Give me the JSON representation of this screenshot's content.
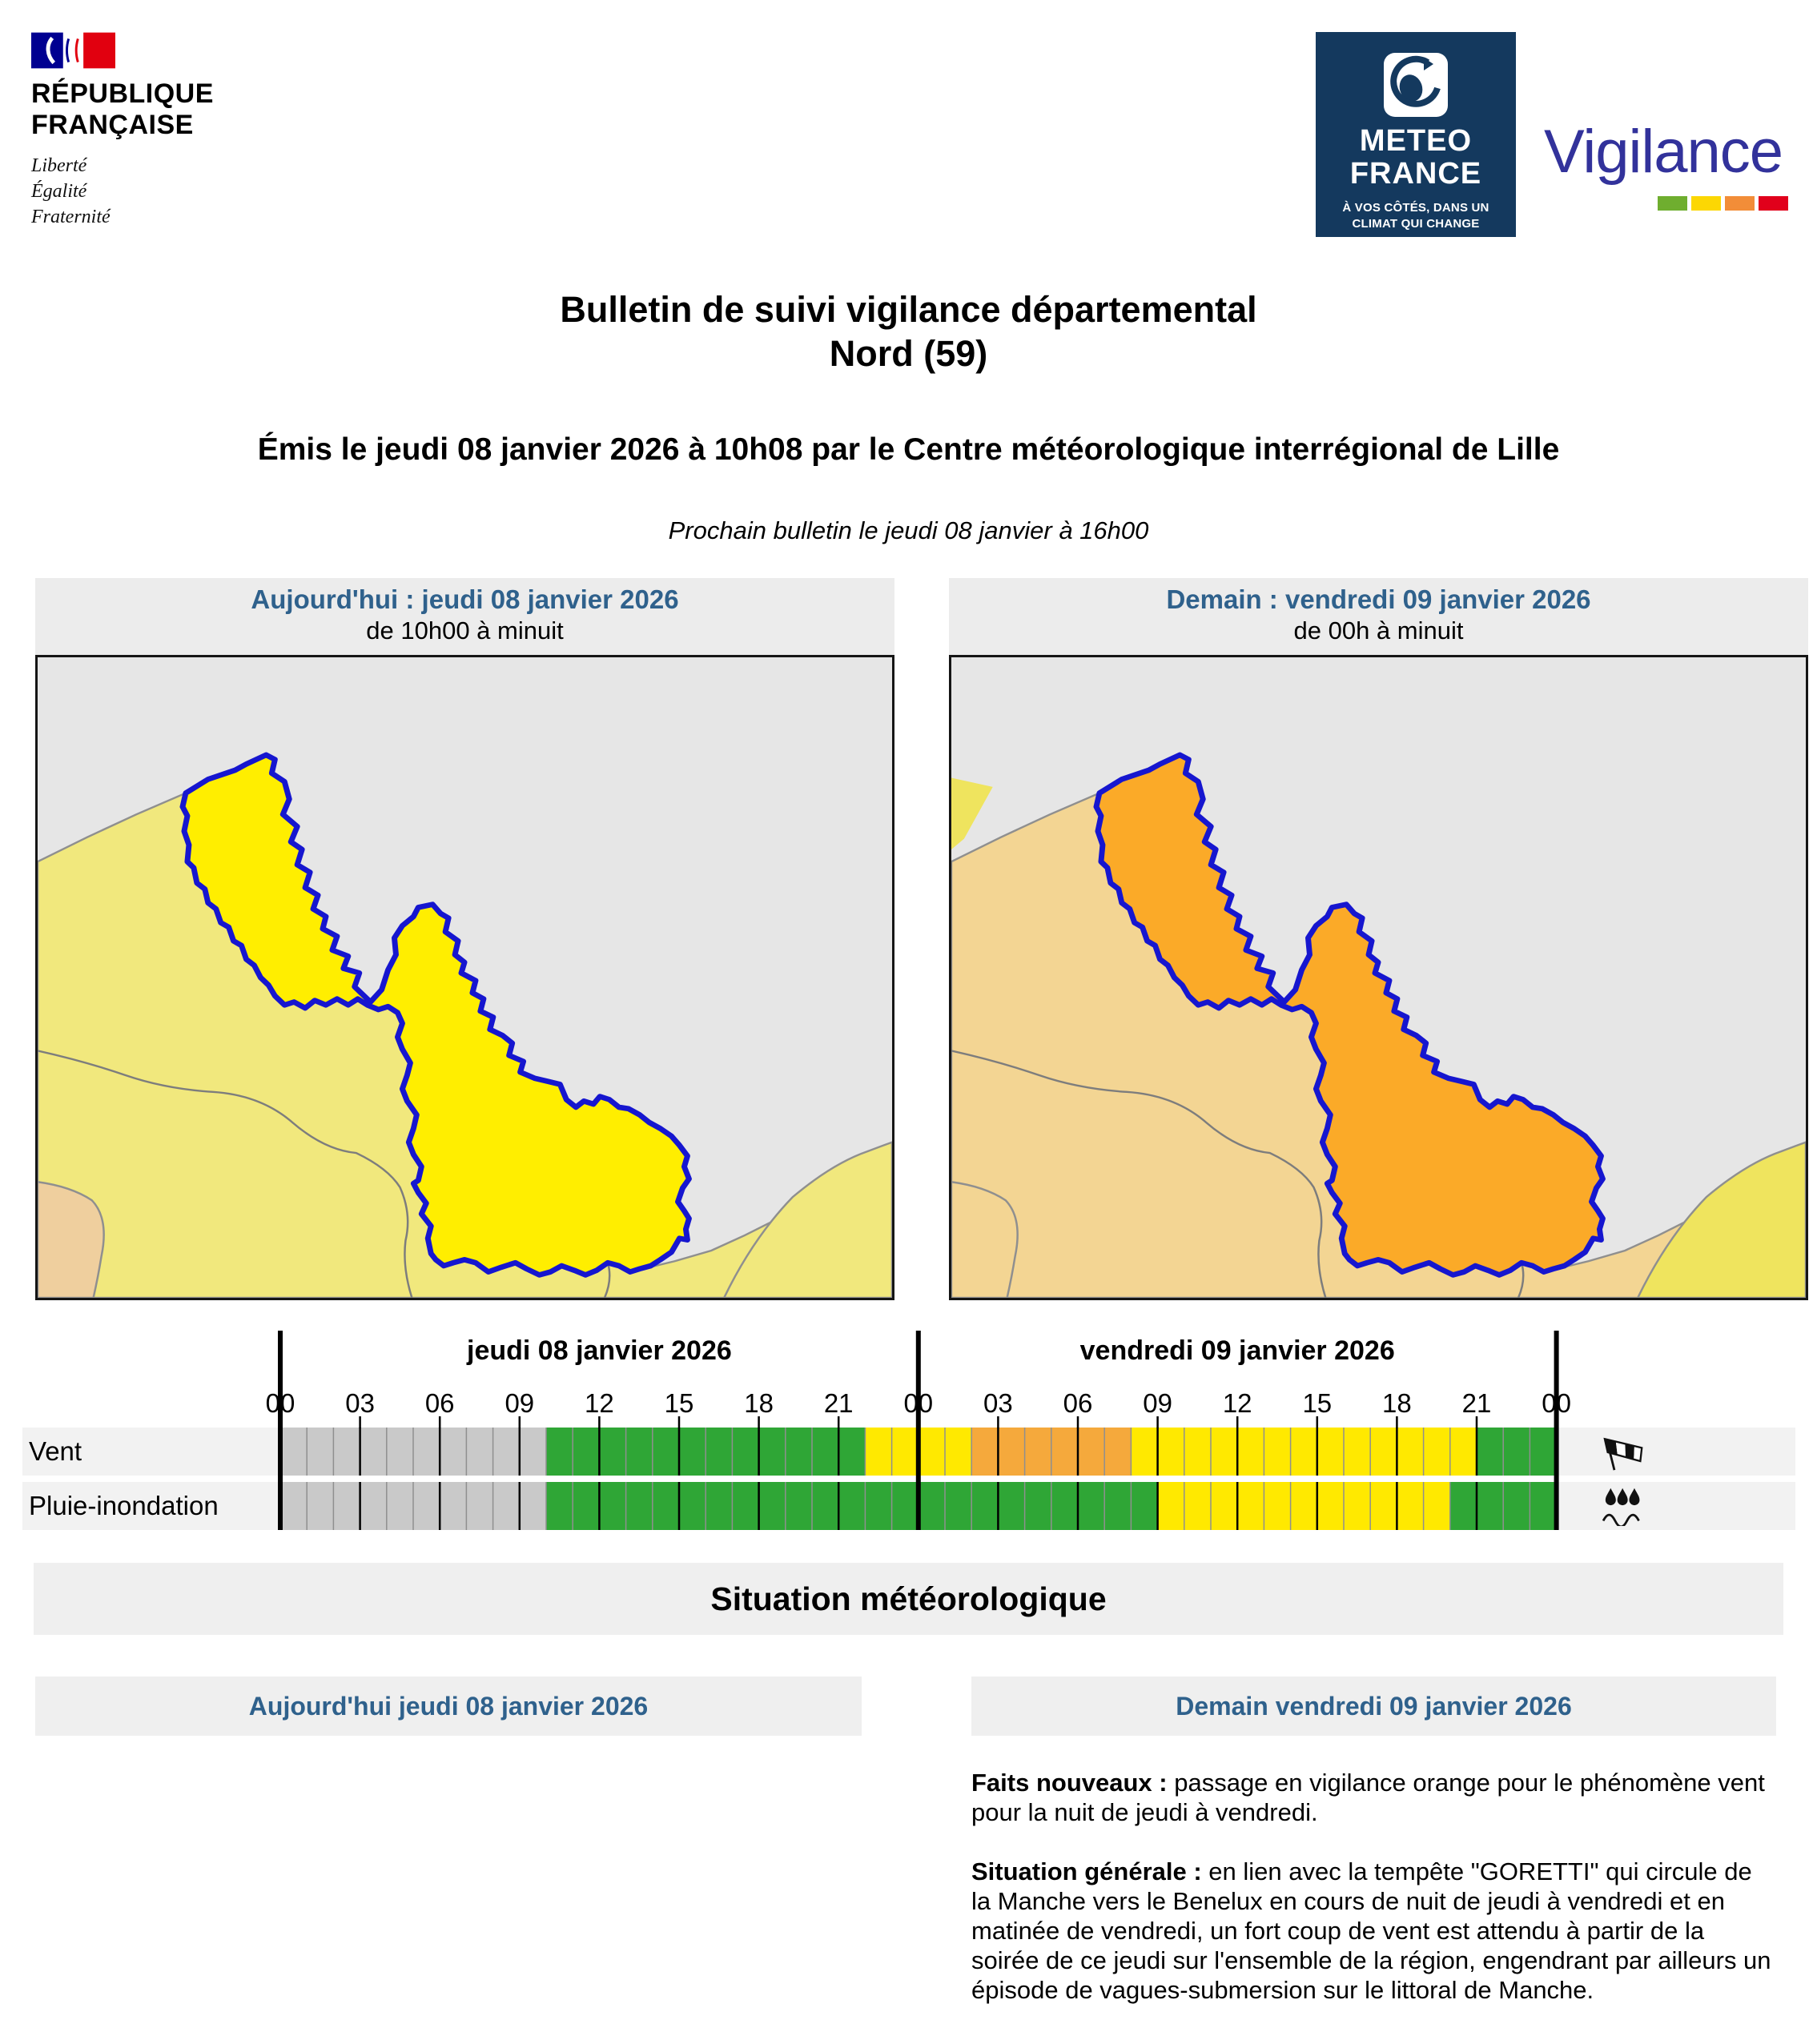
{
  "header": {
    "republic": {
      "line1": "RÉPUBLIQUE",
      "line2": "FRANÇAISE",
      "motto": [
        "Liberté",
        "Égalité",
        "Fraternité"
      ]
    },
    "meteo_france": {
      "name_line1": "METEO",
      "name_line2": "FRANCE",
      "tagline_line1": "À VOS CÔTÉS, DANS UN",
      "tagline_line2": "CLIMAT QUI CHANGE"
    },
    "vigilance_logo": {
      "text": "Vigilance",
      "bar_colors": [
        "#6fae2f",
        "#fcd703",
        "#f28d38",
        "#e1001b"
      ]
    }
  },
  "title": {
    "line1": "Bulletin de suivi vigilance départemental",
    "line2": "Nord (59)"
  },
  "issued": "Émis le jeudi 08 janvier 2026 à 10h08 par le Centre météorologique interrégional de Lille",
  "next_bulletin": "Prochain bulletin le jeudi 08 janvier à 16h00",
  "maps": {
    "today": {
      "title": "Aujourd'hui : jeudi 08 janvier 2026",
      "subtitle": "de 10h00 à minuit",
      "nord_level": "jaune"
    },
    "tomorrow": {
      "title": "Demain : vendredi 09 janvier 2026",
      "subtitle": "de 00h à minuit",
      "nord_level": "orange"
    }
  },
  "chart_data": {
    "type": "timeline",
    "x_unit": "heure",
    "x_range_hours": [
      0,
      48
    ],
    "days": [
      {
        "label": "jeudi 08 janvier 2026"
      },
      {
        "label": "vendredi 09 janvier 2026"
      }
    ],
    "hour_tick_labels": [
      "00",
      "03",
      "06",
      "09",
      "12",
      "15",
      "18",
      "21",
      "00",
      "03",
      "06",
      "09",
      "12",
      "15",
      "18",
      "21",
      "00"
    ],
    "legend": {
      "nodata": "#c9c9c9",
      "green": "#2fa636",
      "yellow": "#ffe900",
      "orange": "#f5a93c"
    },
    "rows": [
      {
        "label": "Vent",
        "icon": "windsock-icon",
        "segments": [
          {
            "from": 0,
            "to": 10,
            "level": "nodata"
          },
          {
            "from": 10,
            "to": 22,
            "level": "green"
          },
          {
            "from": 22,
            "to": 26,
            "level": "yellow"
          },
          {
            "from": 26,
            "to": 32,
            "level": "orange"
          },
          {
            "from": 32,
            "to": 45,
            "level": "yellow"
          },
          {
            "from": 45,
            "to": 48,
            "level": "green"
          }
        ]
      },
      {
        "label": "Pluie-inondation",
        "icon": "rain-flood-icon",
        "segments": [
          {
            "from": 0,
            "to": 10,
            "level": "nodata"
          },
          {
            "from": 10,
            "to": 33,
            "level": "green"
          },
          {
            "from": 33,
            "to": 44,
            "level": "yellow"
          },
          {
            "from": 44,
            "to": 48,
            "level": "green"
          }
        ]
      }
    ]
  },
  "situation": {
    "heading": "Situation météorologique",
    "today_heading": "Aujourd'hui jeudi 08 janvier 2026",
    "tomorrow_heading": "Demain vendredi 09 janvier 2026",
    "tomorrow_paragraphs": [
      {
        "label": "Faits nouveaux :",
        "text": " passage en vigilance orange pour le phénomène vent pour la nuit de jeudi à vendredi."
      },
      {
        "label": "Situation générale :",
        "text": " en lien avec la tempête \"GORETTI\" qui circule de la Manche vers le Benelux en cours de nuit de jeudi à vendredi et en matinée de vendredi, un fort coup de vent est attendu à partir de la soirée de ce jeudi sur l'ensemble de la région, engendrant par ailleurs un épisode de vagues-submersion sur le littoral de Manche."
      }
    ]
  },
  "colors": {
    "header_blue": "#2f618c",
    "vigilance_navy": "#32329b",
    "mf_navy": "#14395e",
    "sea": "#e6e6e6",
    "map_today_region": "#f1e87d",
    "map_today_nord": "#ffee00",
    "map_today_sw": "#efcf9e",
    "map_tmrw_region": "#f3d593",
    "map_tmrw_nord": "#fbaa28",
    "map_accent": "#efe45e",
    "nord_stroke": "#1616cf"
  }
}
